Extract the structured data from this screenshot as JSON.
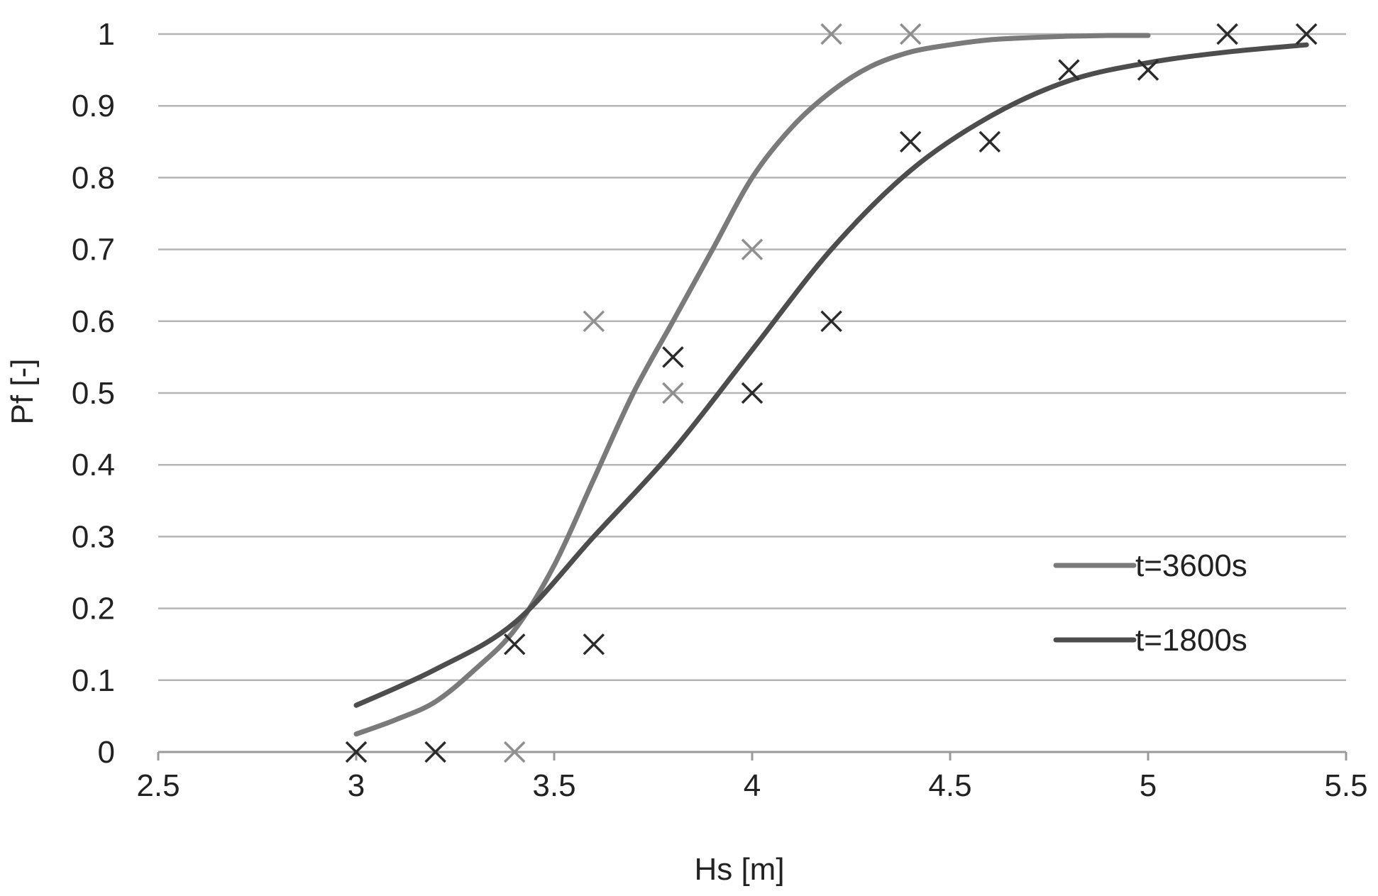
{
  "chart_data": {
    "type": "scatter",
    "title": "",
    "xlabel": "Hs [m]",
    "ylabel": "Pf [-]",
    "xlim": [
      2.5,
      5.5
    ],
    "ylim": [
      0,
      1
    ],
    "x_ticks": [
      2.5,
      3,
      3.5,
      4,
      4.5,
      5,
      5.5
    ],
    "x_tick_labels": [
      "2.5",
      "3",
      "3.5",
      "4",
      "4.5",
      "5",
      "5.5"
    ],
    "y_ticks": [
      0,
      0.1,
      0.2,
      0.3,
      0.4,
      0.5,
      0.6,
      0.7,
      0.8,
      0.9,
      1
    ],
    "y_tick_labels": [
      "0",
      "0.1",
      "0.2",
      "0.3",
      "0.4",
      "0.5",
      "0.6",
      "0.7",
      "0.8",
      "0.9",
      "1"
    ],
    "grid": "horizontal",
    "legend_position": "lower-right",
    "series": [
      {
        "name": "t=3600s",
        "kind": "line",
        "color": "#7a7a7a",
        "x": [
          3.0,
          3.1,
          3.2,
          3.3,
          3.4,
          3.5,
          3.6,
          3.7,
          3.8,
          3.9,
          4.0,
          4.1,
          4.2,
          4.3,
          4.4,
          4.5,
          4.6,
          4.7,
          4.8,
          4.9,
          5.0
        ],
        "y": [
          0.025,
          0.045,
          0.07,
          0.115,
          0.17,
          0.26,
          0.38,
          0.5,
          0.6,
          0.7,
          0.8,
          0.87,
          0.92,
          0.955,
          0.975,
          0.985,
          0.992,
          0.995,
          0.997,
          0.998,
          0.998
        ]
      },
      {
        "name": "t=1800s",
        "kind": "line",
        "color": "#4d4d4d",
        "x": [
          3.0,
          3.2,
          3.4,
          3.6,
          3.8,
          4.0,
          4.2,
          4.4,
          4.6,
          4.8,
          5.0,
          5.2,
          5.4
        ],
        "y": [
          0.065,
          0.115,
          0.18,
          0.3,
          0.42,
          0.56,
          0.7,
          0.81,
          0.885,
          0.935,
          0.96,
          0.975,
          0.985
        ]
      },
      {
        "name": "",
        "kind": "markers",
        "marker": "x",
        "color": "#8f8f8f",
        "x": [
          3.4,
          3.6,
          3.8,
          4.0,
          4.2,
          4.4
        ],
        "y": [
          0.0,
          0.6,
          0.5,
          0.7,
          1.0,
          1.0
        ]
      },
      {
        "name": "",
        "kind": "markers",
        "marker": "x",
        "color": "#2b2b2b",
        "x": [
          3.0,
          3.2,
          3.4,
          3.6,
          3.8,
          4.0,
          4.2,
          4.4,
          4.6,
          4.8,
          5.0,
          5.2,
          5.4
        ],
        "y": [
          0.0,
          0.0,
          0.15,
          0.15,
          0.55,
          0.5,
          0.6,
          0.85,
          0.85,
          0.95,
          0.95,
          1.0,
          1.0
        ]
      }
    ]
  }
}
